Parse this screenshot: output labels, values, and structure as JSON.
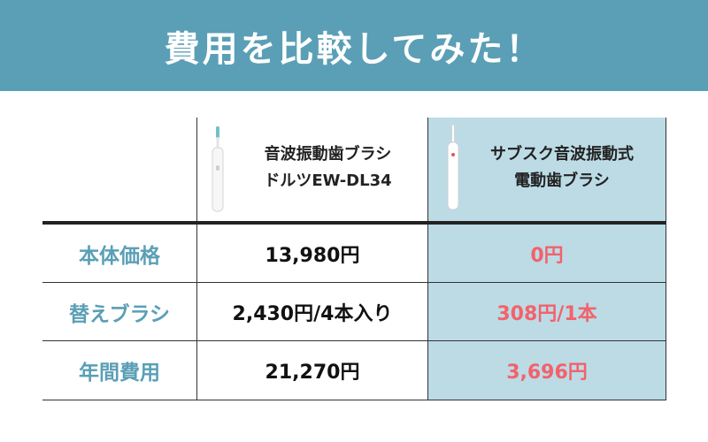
{
  "banner": {
    "title": "費用を比較してみた！",
    "color": "#5a9fb6"
  },
  "table": {
    "columns": [
      {
        "name_line1": "音波振動歯ブラシ",
        "name_line2": "ドルツEW-DL34",
        "icon": "toothbrush-icon"
      },
      {
        "name_line1": "サブスク音波振動式",
        "name_line2": "電動歯ブラシ",
        "icon": "toothbrush-icon"
      }
    ],
    "rows": [
      {
        "label": "本体価格",
        "doltz": "13,980円",
        "subscription": "0円"
      },
      {
        "label": "替えブラシ",
        "doltz": "2,430円/4本入り",
        "subscription": "308円/1本"
      },
      {
        "label": "年間費用",
        "doltz": "21,270円",
        "subscription": "3,696円"
      }
    ],
    "colors": {
      "label": "#5a9fb6",
      "highlight_bg": "#bcdbe5",
      "highlight_text": "#f2626c"
    }
  }
}
